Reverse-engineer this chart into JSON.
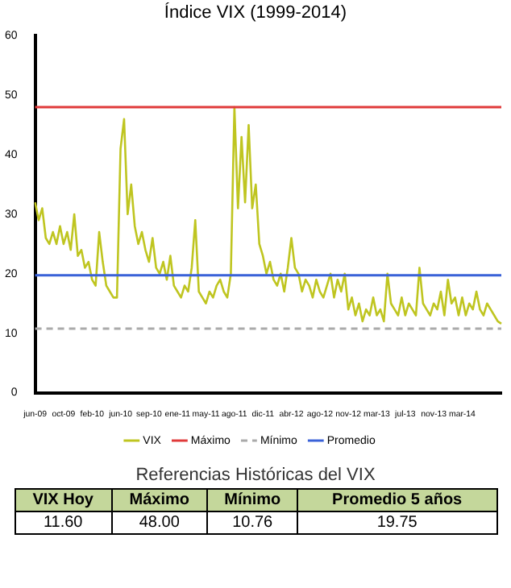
{
  "chart_data": {
    "type": "line",
    "title": "Índice VIX (1999-2014)",
    "categories": [
      "jun-09",
      null,
      null,
      null,
      null,
      null,
      null,
      null,
      "oct-09",
      null,
      null,
      null,
      null,
      null,
      null,
      null,
      "feb-10",
      null,
      null,
      null,
      null,
      null,
      null,
      null,
      "jun-10",
      null,
      null,
      null,
      null,
      null,
      null,
      null,
      "sep-10",
      null,
      null,
      null,
      null,
      null,
      null,
      null,
      "ene-11",
      null,
      null,
      null,
      null,
      null,
      null,
      null,
      "may-11",
      null,
      null,
      null,
      null,
      null,
      null,
      null,
      "ago-11",
      null,
      null,
      null,
      null,
      null,
      null,
      null,
      "dic-11",
      null,
      null,
      null,
      null,
      null,
      null,
      null,
      "abr-12",
      null,
      null,
      null,
      null,
      null,
      null,
      null,
      "ago-12",
      null,
      null,
      null,
      null,
      null,
      null,
      null,
      "nov-12",
      null,
      null,
      null,
      null,
      null,
      null,
      null,
      "mar-13",
      null,
      null,
      null,
      null,
      null,
      null,
      null,
      "jul-13",
      null,
      null,
      null,
      null,
      null,
      null,
      null,
      "nov-13",
      null,
      null,
      null,
      null,
      null,
      null,
      null,
      "mar-14",
      null,
      null,
      null,
      null,
      null,
      null,
      null,
      null,
      null,
      null,
      null
    ],
    "series": [
      {
        "name": "VIX",
        "color": "#bfc520",
        "values": [
          32,
          29,
          31,
          26,
          25,
          27,
          25,
          28,
          25,
          27,
          24,
          30,
          23,
          24,
          21,
          22,
          19,
          18,
          27,
          22,
          18,
          17,
          16,
          16,
          41,
          46,
          30,
          35,
          28,
          25,
          27,
          24,
          22,
          26,
          21,
          20,
          22,
          19,
          23,
          18,
          17,
          16,
          18,
          17,
          21,
          29,
          17,
          16,
          15,
          17,
          16,
          18,
          19,
          17,
          16,
          20,
          48,
          31,
          43,
          32,
          45,
          31,
          35,
          25,
          23,
          20,
          22,
          19,
          18,
          20,
          17,
          21,
          26,
          21,
          20,
          17,
          19,
          18,
          16,
          19,
          17,
          16,
          18,
          20,
          16,
          19,
          17,
          20,
          14,
          16,
          13,
          15,
          12,
          14,
          13,
          16,
          13,
          14,
          12,
          20,
          15,
          14,
          13,
          16,
          13,
          15,
          14,
          13,
          21,
          15,
          14,
          13,
          15,
          14,
          17,
          13,
          19,
          15,
          16,
          13,
          16,
          13,
          15,
          14,
          17,
          14,
          13,
          15,
          14,
          13,
          12,
          11.6
        ]
      }
    ],
    "ref_lines": [
      {
        "axis": "y",
        "value": 48,
        "label": "Máximo",
        "color": "#e03a3a"
      },
      {
        "axis": "y",
        "value": 10.76,
        "label": "Mínimo",
        "color": "#aaaaaa",
        "line_style": "dashed"
      },
      {
        "axis": "y",
        "value": 19.75,
        "label": "Promedio",
        "color": "#3a62d8"
      }
    ],
    "ylim": [
      0,
      60
    ],
    "yticks": [
      0,
      10,
      20,
      30,
      40,
      50,
      60
    ],
    "grid": false,
    "legend": "bottom",
    "marker": "none",
    "line_style": "solid",
    "annotations": [
      "Referencias Históricas del VIX",
      "VIX Hoy",
      "Máximo",
      "Mínimo",
      "Promedio 5 años",
      "11.60",
      "48.00",
      "10.76",
      "19.75"
    ]
  }
}
